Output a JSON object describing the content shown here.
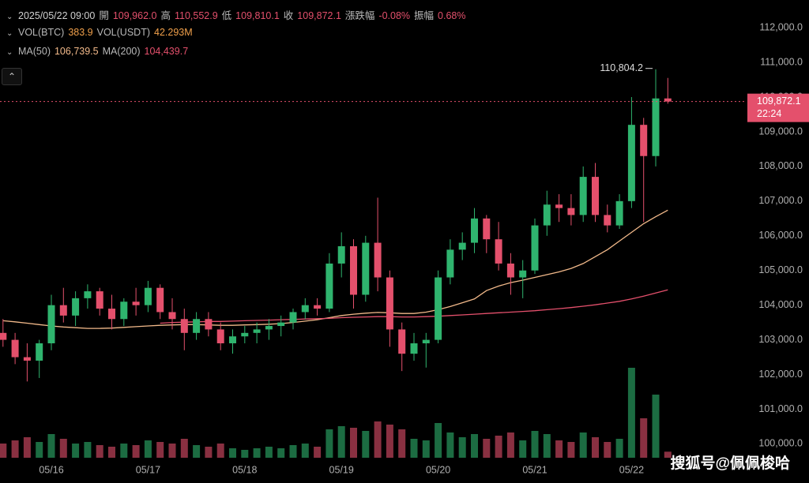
{
  "chart_data": {
    "type": "candlestick",
    "header": {
      "time": "2025/05/22 09:00",
      "fields": [
        {
          "label": "開",
          "value": "109,962.0"
        },
        {
          "label": "高",
          "value": "110,552.9"
        },
        {
          "label": "低",
          "value": "109,810.1"
        },
        {
          "label": "收",
          "value": "109,872.1"
        },
        {
          "label": "漲跌幅",
          "value": "-0.08%"
        },
        {
          "label": "振幅",
          "value": "0.68%"
        }
      ]
    },
    "categories": [
      null,
      null,
      null,
      null,
      "05/16",
      null,
      null,
      null,
      null,
      null,
      null,
      null,
      "05/17",
      null,
      null,
      null,
      null,
      null,
      null,
      null,
      "05/18",
      null,
      null,
      null,
      null,
      null,
      null,
      null,
      "05/19",
      null,
      null,
      null,
      null,
      null,
      null,
      null,
      "05/20",
      null,
      null,
      null,
      null,
      null,
      null,
      null,
      "05/21",
      null,
      null,
      null,
      null,
      null,
      null,
      null,
      "05/22",
      null,
      null,
      null
    ],
    "open": [
      103200,
      103000,
      102500,
      102400,
      102900,
      104000,
      103700,
      104200,
      104400,
      103900,
      103600,
      104100,
      104000,
      104500,
      103800,
      103600,
      103200,
      103600,
      103300,
      102900,
      103100,
      103200,
      103300,
      103400,
      103500,
      103800,
      104000,
      103900,
      105200,
      105700,
      104300,
      105800,
      104800,
      103300,
      102600,
      102900,
      103000,
      104800,
      105600,
      105800,
      106500,
      105900,
      105200,
      104800,
      105000,
      106300,
      106900,
      106800,
      106600,
      107700,
      106600,
      106300,
      107000,
      109200,
      108300,
      109962.0
    ],
    "high": [
      103600,
      103200,
      102900,
      103000,
      104300,
      104500,
      104400,
      104600,
      104500,
      104300,
      104200,
      104500,
      104700,
      104600,
      104200,
      103900,
      103800,
      103800,
      103500,
      103300,
      103400,
      103500,
      103600,
      103700,
      103900,
      104200,
      104200,
      105500,
      106100,
      105900,
      106000,
      107100,
      105000,
      103500,
      103200,
      103200,
      105000,
      105900,
      106100,
      106800,
      106600,
      106400,
      105500,
      105300,
      106500,
      107300,
      107200,
      107200,
      108000,
      108100,
      106900,
      107200,
      110000,
      109400,
      110804.2,
      110552.9
    ],
    "low": [
      102800,
      102300,
      101800,
      101900,
      102700,
      103500,
      103400,
      103900,
      103700,
      103300,
      103400,
      103700,
      103800,
      103600,
      103300,
      102700,
      103000,
      103100,
      102700,
      102600,
      102900,
      102900,
      103000,
      103100,
      103300,
      103600,
      103700,
      103800,
      104800,
      103900,
      104100,
      104400,
      102800,
      102100,
      102400,
      102200,
      102900,
      104600,
      105300,
      105500,
      105500,
      105000,
      104300,
      104200,
      104900,
      106000,
      106400,
      106300,
      106400,
      106400,
      106100,
      106200,
      106800,
      106400,
      108000,
      109810.1
    ],
    "close": [
      103000,
      102500,
      102400,
      102900,
      104000,
      103700,
      104200,
      104400,
      103900,
      103600,
      104100,
      104000,
      104500,
      103800,
      103600,
      103200,
      103600,
      103300,
      102900,
      103100,
      103200,
      103300,
      103400,
      103500,
      103800,
      104000,
      103900,
      105200,
      105700,
      104300,
      105800,
      104800,
      103300,
      102600,
      102900,
      103000,
      104800,
      105600,
      105800,
      106500,
      105900,
      105200,
      104800,
      105000,
      106300,
      106900,
      106800,
      106600,
      107700,
      106600,
      106300,
      107000,
      109200,
      108300,
      109962.0,
      109872.1
    ],
    "up_color": "#2fb46e",
    "down_color": "#e4506c",
    "volume": {
      "legend": [
        {
          "label": "VOL(BTC)",
          "value": "383.9"
        },
        {
          "label": "VOL(USDT)",
          "value": "42.293M"
        }
      ],
      "values": [
        900,
        1100,
        1300,
        1000,
        1500,
        1200,
        900,
        1000,
        800,
        700,
        900,
        800,
        1100,
        1000,
        900,
        1200,
        800,
        700,
        900,
        600,
        500,
        600,
        700,
        600,
        800,
        900,
        700,
        1800,
        2000,
        1900,
        1700,
        2300,
        2100,
        1800,
        1200,
        1100,
        2200,
        1600,
        1300,
        1500,
        1200,
        1400,
        1600,
        1100,
        1700,
        1500,
        1100,
        1000,
        1600,
        1300,
        1000,
        1200,
        5700,
        2500,
        4000,
        383.9
      ],
      "vlim": [
        0,
        6000
      ]
    },
    "series": [
      {
        "name": "MA(50)",
        "value_label": "106,739.5",
        "color": "#f2b98a",
        "values": [
          103550,
          103520,
          103480,
          103440,
          103400,
          103370,
          103350,
          103330,
          103330,
          103340,
          103360,
          103380,
          103400,
          103420,
          103430,
          103440,
          103440,
          103430,
          103420,
          103420,
          103430,
          103440,
          103450,
          103470,
          103500,
          103540,
          103580,
          103640,
          103700,
          103740,
          103770,
          103790,
          103780,
          103760,
          103760,
          103800,
          103870,
          103960,
          104070,
          104180,
          104420,
          104550,
          104650,
          104720,
          104800,
          104880,
          104960,
          105060,
          105200,
          105400,
          105600,
          105850,
          106100,
          106350,
          106550,
          106739.5
        ]
      },
      {
        "name": "MA(200)",
        "value_label": "104,439.7",
        "color": "#e4506c",
        "values": [
          null,
          null,
          null,
          null,
          null,
          null,
          null,
          null,
          null,
          null,
          null,
          null,
          null,
          103480,
          103500,
          103510,
          103520,
          103530,
          103530,
          103540,
          103550,
          103560,
          103570,
          103580,
          103590,
          103600,
          103610,
          103620,
          103640,
          103650,
          103660,
          103670,
          103670,
          103660,
          103660,
          103670,
          103680,
          103700,
          103720,
          103740,
          103760,
          103780,
          103800,
          103820,
          103840,
          103870,
          103900,
          103930,
          103970,
          104010,
          104060,
          104110,
          104180,
          104260,
          104350,
          104439.7
        ]
      }
    ],
    "ylim": [
      99600,
      112800
    ],
    "yticks": [
      {
        "value": 100000,
        "label": "100,000.0"
      },
      {
        "value": 101000,
        "label": "101,000.0"
      },
      {
        "value": 102000,
        "label": "102,000.0"
      },
      {
        "value": 103000,
        "label": "103,000.0"
      },
      {
        "value": 104000,
        "label": "104,000.0"
      },
      {
        "value": 105000,
        "label": "105,000.0"
      },
      {
        "value": 106000,
        "label": "106,000.0"
      },
      {
        "value": 107000,
        "label": "107,000.0"
      },
      {
        "value": 108000,
        "label": "108,000.0"
      },
      {
        "value": 109000,
        "label": "109,000.0"
      },
      {
        "value": 110000,
        "label": "110,000.0"
      },
      {
        "value": 111000,
        "label": "111,000.0"
      },
      {
        "value": 112000,
        "label": "112,000.0"
      }
    ],
    "high_label": "110,804.2",
    "last_price": {
      "label": "109,872.1",
      "countdown": "22:24"
    },
    "watermark": "搜狐号@佩佩梭哈"
  }
}
